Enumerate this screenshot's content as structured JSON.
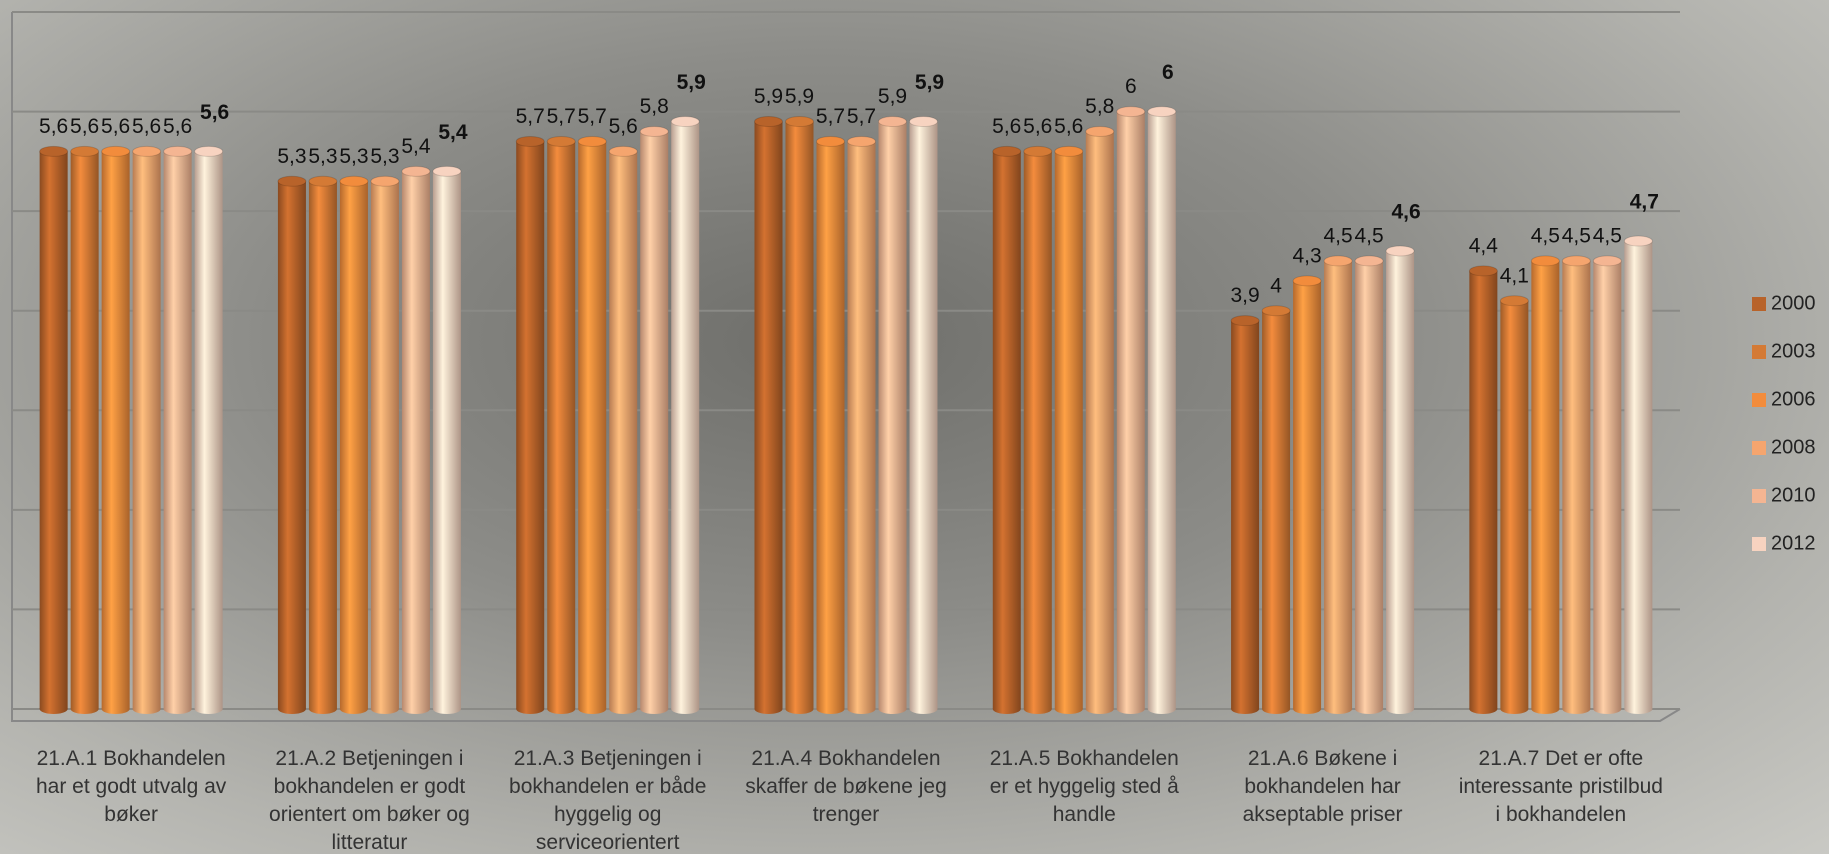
{
  "chart_data": {
    "type": "bar",
    "categories": [
      "21.A.1 Bokhandelen har et godt utvalg av bøker",
      "21.A.2 Betjeningen i bokhandelen er godt orientert om bøker og litteratur",
      "21.A.3 Betjeningen i bokhandelen er både hyggelig og serviceorientert",
      "21.A.4 Bokhandelen skaffer de bøkene jeg trenger",
      "21.A.5 Bokhandelen er et hyggelig sted å handle",
      "21.A.6 Bøkene i bokhandelen har akseptable priser",
      "21.A.7 Det er ofte interessante pristilbud i bokhandelen"
    ],
    "series": [
      {
        "name": "2000",
        "color": "#b8632a",
        "values": [
          5.6,
          5.3,
          5.7,
          5.9,
          5.6,
          3.9,
          4.4
        ],
        "value_labels": [
          "5,6",
          "5,3",
          "5,7",
          "5,9",
          "5,6",
          "3,9",
          "4,4"
        ]
      },
      {
        "name": "2003",
        "color": "#d47a35",
        "values": [
          5.6,
          5.3,
          5.7,
          5.9,
          5.6,
          4,
          4.1
        ],
        "value_labels": [
          "5,6",
          "5,3",
          "5,7",
          "5,9",
          "5,6",
          "4",
          "4,1"
        ]
      },
      {
        "name": "2006",
        "color": "#f28c3c",
        "values": [
          5.6,
          5.3,
          5.7,
          5.7,
          5.6,
          4.3,
          4.5
        ],
        "value_labels": [
          "5,6",
          "5,3",
          "5,7",
          "5,7",
          "5,6",
          "4,3",
          "4,5"
        ]
      },
      {
        "name": "2008",
        "color": "#f5a56e",
        "values": [
          5.6,
          5.3,
          5.6,
          5.7,
          5.8,
          4.5,
          4.5
        ],
        "value_labels": [
          "5,6",
          "5,3",
          "5,6",
          "5,7",
          "5,8",
          "4,5",
          "4,5"
        ]
      },
      {
        "name": "2010",
        "color": "#f4b592",
        "values": [
          5.6,
          5.4,
          5.8,
          5.9,
          6,
          4.5,
          4.5
        ],
        "value_labels": [
          "5,6",
          "5,4",
          "5,8",
          "5,9",
          "6",
          "4,5",
          "4,5"
        ]
      },
      {
        "name": "2012",
        "color": "#f7d3c0",
        "values": [
          5.6,
          5.4,
          5.9,
          5.9,
          6,
          4.6,
          4.7
        ],
        "value_labels": [
          "5,6",
          "5,4",
          "5,9",
          "5,9",
          "6",
          "4,6",
          "4,7"
        ]
      }
    ],
    "ylim": [
      0,
      7
    ],
    "yticks": [
      0,
      1,
      2,
      3,
      4,
      5,
      6,
      7
    ],
    "grid": true,
    "legend": "right"
  }
}
